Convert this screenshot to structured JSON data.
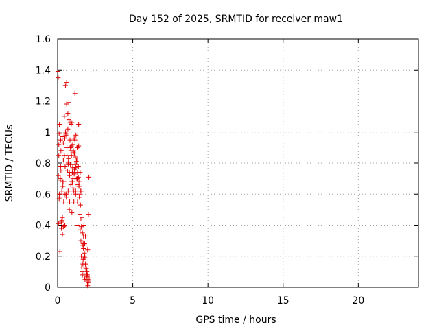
{
  "chart_data": {
    "type": "scatter",
    "title": "Day 152 of 2025, SRMTID for receiver maw1",
    "xlabel": "GPS time / hours",
    "ylabel": "SRMTID / TECUs",
    "xlim": [
      0,
      24
    ],
    "ylim": [
      0,
      1.6
    ],
    "x_ticks": [
      0,
      5,
      10,
      15,
      20
    ],
    "x_tick_labels": [
      "0",
      "5",
      "10",
      "15",
      "20"
    ],
    "y_ticks": [
      0,
      0.2,
      0.4,
      0.6,
      0.8,
      1.0,
      1.2,
      1.4,
      1.6
    ],
    "y_tick_labels": [
      "0",
      "0.2",
      "0.4",
      "0.6",
      "0.8",
      "1",
      "1.2",
      "1.4",
      "1.6"
    ],
    "grid": true,
    "marker": "plus",
    "color": "#e00000",
    "series": [
      {
        "x": [
          0.02,
          0.04,
          0.06,
          0.08,
          0.1,
          0.12,
          0.15,
          0.18,
          0.2,
          0.22,
          0.25,
          0.28,
          0.3,
          0.32,
          0.35,
          0.38,
          0.4,
          0.42,
          0.45,
          0.48,
          0.5,
          0.52,
          0.55,
          0.58,
          0.6,
          0.62,
          0.65,
          0.68,
          0.7,
          0.72,
          0.75,
          0.78,
          0.8,
          0.82,
          0.85,
          0.88,
          0.9,
          0.92,
          0.95,
          0.98,
          1.0,
          1.02,
          1.05,
          1.08,
          1.1,
          1.12,
          1.15,
          1.18,
          1.2,
          1.22,
          1.25,
          1.28,
          1.3,
          1.32,
          1.35,
          1.38,
          1.4,
          1.42,
          1.45,
          1.48,
          1.5,
          1.52,
          1.55,
          1.58,
          1.6,
          1.62,
          1.65,
          1.68,
          1.7,
          1.72,
          1.75,
          1.78,
          1.8,
          1.82,
          1.85,
          1.88,
          1.9,
          1.92,
          1.95,
          1.98,
          2.0,
          2.02,
          2.05,
          2.08,
          2.1,
          0.05,
          0.1,
          0.15,
          0.2,
          0.25,
          0.3,
          0.35,
          0.4,
          0.45,
          0.5,
          0.55,
          0.6,
          0.65,
          0.7,
          0.75,
          0.8,
          0.85,
          0.9,
          0.95,
          1.0,
          1.05,
          1.1,
          1.15,
          1.2,
          1.25,
          1.3,
          1.35,
          1.4,
          1.45,
          1.5,
          1.55,
          1.6,
          1.65,
          1.7,
          1.75,
          1.8,
          1.85,
          1.9,
          1.95,
          2.0,
          2.05,
          0.08,
          0.18,
          0.28,
          0.38,
          0.48,
          0.58,
          0.68,
          0.78,
          0.88,
          0.98,
          1.08,
          1.18,
          1.28,
          1.38,
          1.48,
          1.58,
          1.68,
          1.78,
          1.88,
          1.98,
          0.12,
          0.22,
          0.32,
          0.42,
          0.52,
          0.62,
          0.72,
          0.82,
          0.92,
          1.02,
          1.12,
          1.22,
          1.32,
          1.42,
          1.52,
          1.62,
          1.72,
          1.82,
          1.92,
          2.02
        ],
        "y": [
          1.39,
          1.35,
          0.41,
          0.85,
          0.99,
          1.05,
          0.58,
          0.69,
          0.95,
          0.75,
          0.38,
          0.62,
          0.88,
          0.45,
          0.68,
          0.93,
          0.55,
          0.82,
          1.1,
          0.4,
          0.78,
          1.3,
          0.98,
          0.6,
          1.18,
          0.9,
          0.75,
          1.02,
          0.62,
          0.83,
          1.08,
          0.5,
          0.72,
          0.95,
          0.79,
          0.66,
          1.05,
          0.85,
          0.48,
          0.74,
          0.92,
          0.7,
          0.88,
          0.55,
          0.96,
          0.76,
          1.25,
          0.84,
          0.62,
          0.98,
          0.81,
          0.7,
          0.9,
          0.55,
          0.4,
          0.78,
          1.05,
          0.65,
          0.58,
          0.47,
          0.37,
          0.62,
          0.3,
          0.2,
          0.13,
          0.1,
          0.08,
          0.15,
          0.28,
          0.25,
          0.09,
          0.06,
          0.2,
          0.05,
          0.33,
          0.12,
          0.05,
          0.08,
          0.07,
          0.02,
          0.01,
          0.04,
          0.47,
          0.71,
          0.06,
          0.72,
          0.57,
          0.23,
          0.78,
          0.42,
          0.97,
          0.65,
          0.39,
          0.85,
          0.6,
          0.99,
          1.32,
          0.75,
          0.8,
          1.19,
          0.55,
          0.9,
          0.68,
          1.06,
          0.77,
          0.87,
          0.73,
          0.95,
          0.6,
          0.82,
          0.7,
          0.66,
          0.91,
          0.58,
          0.74,
          0.44,
          0.62,
          0.35,
          0.18,
          0.4,
          0.28,
          0.15,
          0.09,
          0.1,
          0.24,
          0.03,
          0.92,
          0.7,
          0.43,
          0.82,
          0.96,
          0.58,
          1.12,
          0.74,
          0.88,
          0.68,
          0.62,
          0.79,
          0.82,
          0.71,
          0.6,
          0.39,
          0.27,
          0.22,
          0.13,
          0.08,
          0.6,
          0.88,
          0.34,
          0.68,
          1.0,
          0.85,
          0.79,
          1.06,
          0.91,
          0.64,
          0.86,
          0.77,
          0.74,
          0.68,
          0.53,
          0.45,
          0.33,
          0.19,
          0.12,
          0.05
        ]
      }
    ]
  }
}
